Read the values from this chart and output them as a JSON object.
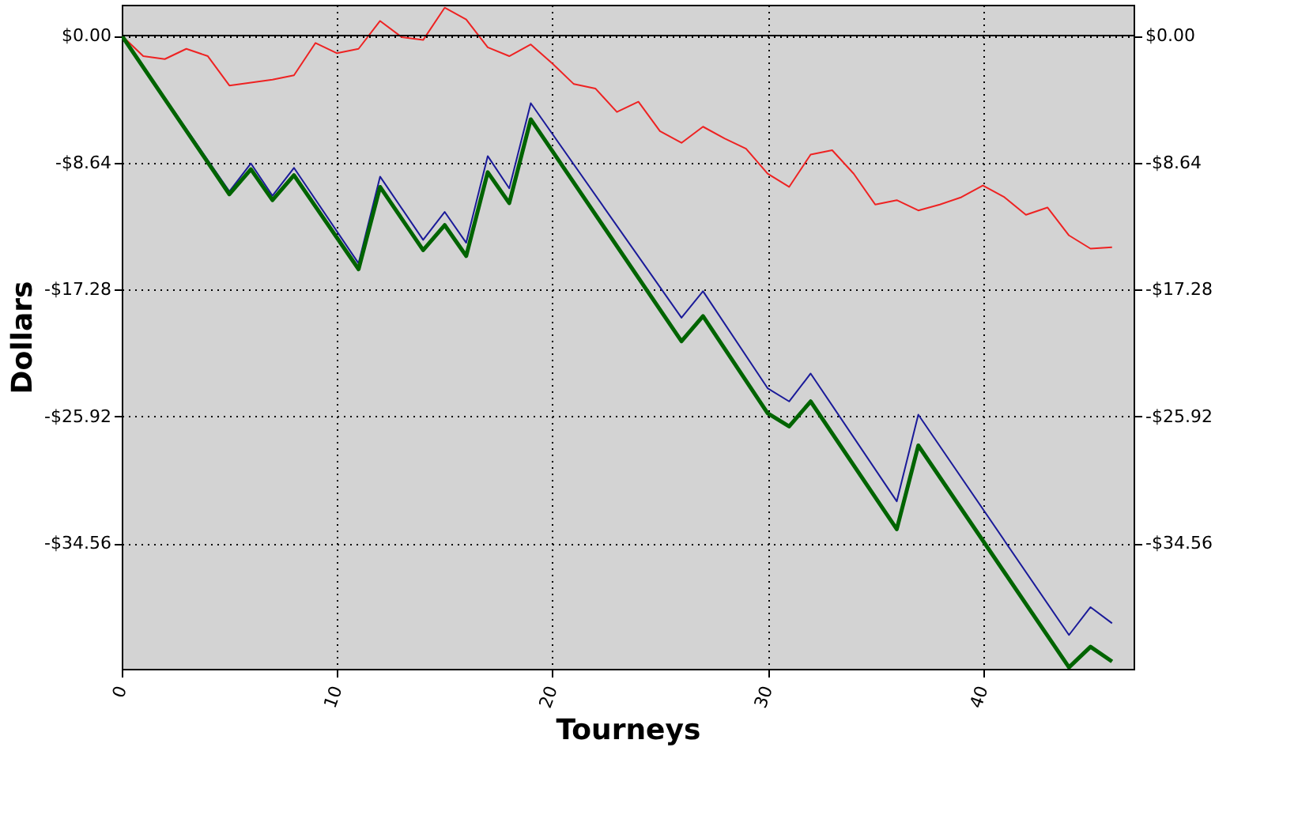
{
  "chart_data": {
    "type": "line",
    "xlabel": "Tourneys",
    "ylabel": "Dollars",
    "xlim": [
      0,
      47
    ],
    "xticks": [
      0,
      10,
      20,
      30,
      40
    ],
    "ylim": [
      -43.1,
      2.1
    ],
    "yticks": [
      {
        "value": 0,
        "label": "$0.00"
      },
      {
        "value": -8.64,
        "label": "-$8.64"
      },
      {
        "value": -17.28,
        "label": "-$17.28"
      },
      {
        "value": -25.92,
        "label": "-$25.92"
      },
      {
        "value": -34.56,
        "label": "-$34.56"
      }
    ],
    "y2lim": [
      -43.1,
      2.1
    ],
    "y2ticks": [
      {
        "value": 0,
        "label": "$0.00"
      },
      {
        "value": -8.64,
        "label": "-$8.64"
      },
      {
        "value": -17.28,
        "label": "-$17.28"
      },
      {
        "value": -25.92,
        "label": "-$25.92"
      },
      {
        "value": -34.56,
        "label": "-$34.56"
      }
    ],
    "grid": true,
    "marker": "none",
    "line_style": "solid",
    "ref_lines": [
      {
        "axis": "y",
        "value": 0,
        "color": "#000000",
        "line_style": "solid"
      }
    ],
    "series": [
      {
        "color": "#ee2222",
        "x": [
          0,
          1,
          2,
          3,
          4,
          5,
          6,
          7,
          8,
          9,
          10,
          11,
          12,
          13,
          14,
          15,
          16,
          17,
          18,
          19,
          20,
          21,
          22,
          23,
          24,
          25,
          26,
          27,
          28,
          29,
          30,
          31,
          32,
          33,
          34,
          35,
          36,
          37,
          38,
          39,
          40,
          41,
          42,
          43,
          44,
          45,
          46
        ],
        "values": [
          0,
          -1.4,
          -1.6,
          -0.9,
          -1.4,
          -3.4,
          -3.2,
          -3.0,
          -2.7,
          -0.5,
          -1.2,
          -0.9,
          1.0,
          -0.1,
          -0.3,
          1.9,
          1.1,
          -0.8,
          -1.4,
          -0.6,
          -1.9,
          -3.3,
          -3.6,
          -5.2,
          -4.5,
          -6.5,
          -7.3,
          -6.2,
          -7.0,
          -7.7,
          -9.4,
          -10.3,
          -8.1,
          -7.8,
          -9.4,
          -11.5,
          -11.2,
          -11.9,
          -11.5,
          -11.0,
          -10.2,
          -11.0,
          -12.2,
          -11.7,
          -13.6,
          -14.5,
          -14.4
        ]
      },
      {
        "color": "#1a1a99",
        "x": [
          0,
          5,
          6,
          7,
          8,
          11,
          12,
          14,
          15,
          16,
          17,
          18,
          19,
          26,
          27,
          30,
          31,
          32,
          36,
          37,
          44,
          45,
          46
        ],
        "values": [
          0,
          -10.6,
          -8.7,
          -10.9,
          -9.0,
          -15.5,
          -9.6,
          -13.9,
          -12.0,
          -14.1,
          -8.2,
          -10.4,
          -4.6,
          -19.2,
          -17.4,
          -24.0,
          -24.9,
          -23.0,
          -31.7,
          -25.8,
          -40.8,
          -38.9,
          -40.0
        ]
      },
      {
        "color": "#006400",
        "x": [
          0,
          5,
          6,
          7,
          8,
          11,
          12,
          14,
          15,
          16,
          17,
          18,
          19,
          26,
          27,
          30,
          31,
          32,
          36,
          37,
          44,
          45,
          46
        ],
        "values": [
          0,
          -10.8,
          -9.1,
          -11.2,
          -9.5,
          -15.9,
          -10.3,
          -14.6,
          -12.9,
          -15.0,
          -9.3,
          -11.4,
          -5.7,
          -20.8,
          -19.1,
          -25.7,
          -26.6,
          -24.9,
          -33.6,
          -27.9,
          -43.0,
          -41.6,
          -42.6
        ]
      }
    ]
  }
}
